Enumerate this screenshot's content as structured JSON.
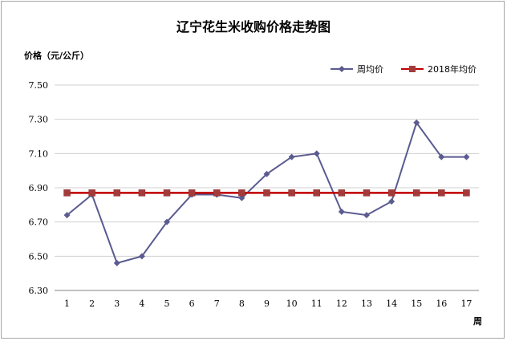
{
  "chart_data": {
    "type": "line",
    "title": "辽宁花生米收购价格走势图",
    "ylabel": "价格（元/公斤）",
    "xlabel": "周",
    "x": [
      "1",
      "2",
      "3",
      "4",
      "5",
      "6",
      "7",
      "8",
      "9",
      "10",
      "11",
      "12",
      "13",
      "14",
      "15",
      "16",
      "17"
    ],
    "yticks": [
      "6.30",
      "6.50",
      "6.70",
      "6.90",
      "7.10",
      "7.30",
      "7.50"
    ],
    "ylim": [
      6.3,
      7.5
    ],
    "grid": true,
    "legend_position": "top-right",
    "series": [
      {
        "name": "周均价",
        "color": "#5b5b91",
        "marker": "diamond",
        "values": [
          6.74,
          6.86,
          6.46,
          6.5,
          6.7,
          6.86,
          6.86,
          6.84,
          6.98,
          7.08,
          7.1,
          6.76,
          6.74,
          6.82,
          7.28,
          7.08,
          7.08
        ]
      },
      {
        "name": "2018年均价",
        "color": "#c00000",
        "marker": "square",
        "values": [
          6.87,
          6.87,
          6.87,
          6.87,
          6.87,
          6.87,
          6.87,
          6.87,
          6.87,
          6.87,
          6.87,
          6.87,
          6.87,
          6.87,
          6.87,
          6.87,
          6.87
        ]
      }
    ]
  }
}
